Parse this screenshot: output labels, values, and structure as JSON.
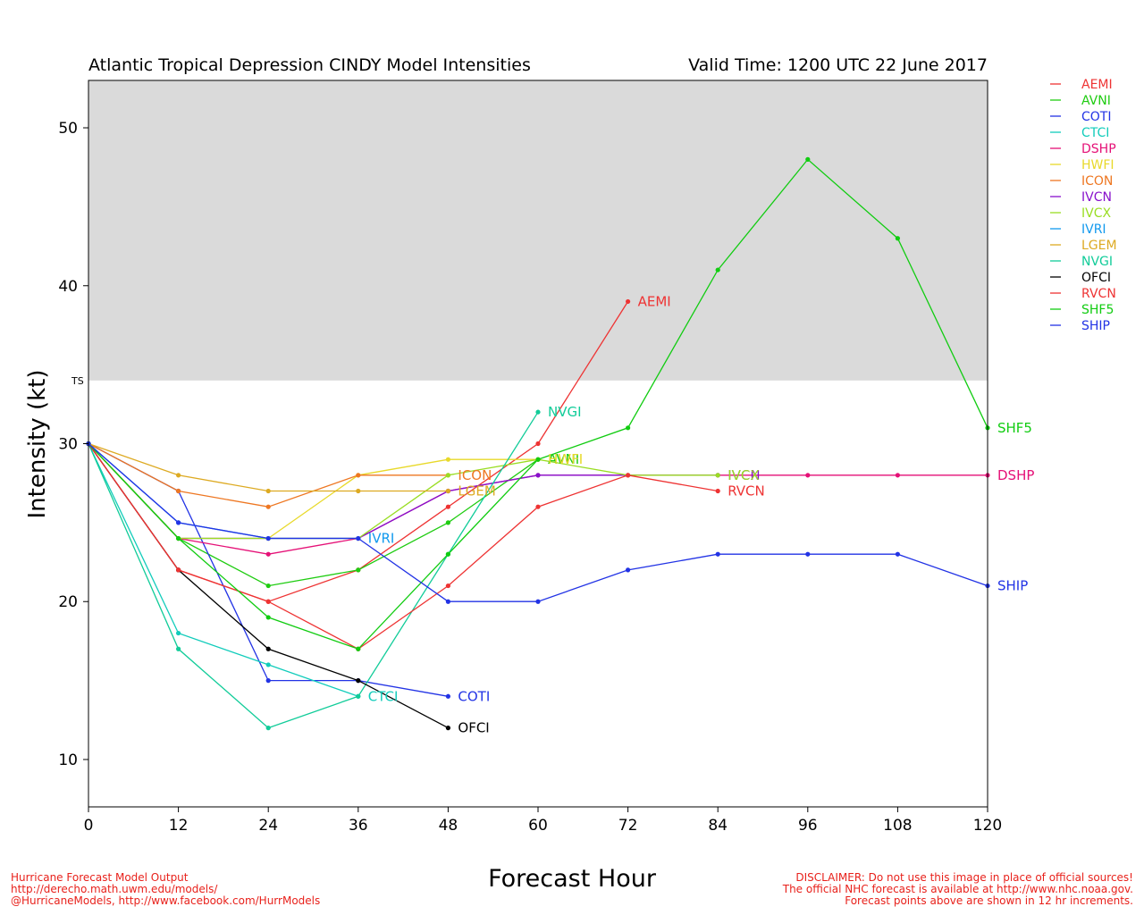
{
  "chart_data": {
    "type": "line",
    "title": "Atlantic Tropical Depression CINDY Model Intensities",
    "valid_time": "Valid Time: 1200 UTC 22 June 2017",
    "xlabel": "Forecast Hour",
    "ylabel": "Intensity (kt)",
    "xlim": [
      0,
      120
    ],
    "ylim": [
      7,
      53
    ],
    "xticks": [
      "0",
      "12",
      "24",
      "36",
      "48",
      "60",
      "72",
      "84",
      "96",
      "108",
      "120"
    ],
    "xtick_values": [
      0,
      12,
      24,
      36,
      48,
      60,
      72,
      84,
      96,
      108,
      120
    ],
    "yticks": [
      "10",
      "20",
      "30",
      "40",
      "50"
    ],
    "ytick_values": [
      10,
      20,
      30,
      40,
      50
    ],
    "threshold": {
      "label": "TS",
      "value": 34,
      "shaded_above": true,
      "shade_color": "#dadada"
    },
    "legend_position": "outside-right",
    "series": [
      {
        "name": "AEMI",
        "color": "#ee3333",
        "x": [
          0,
          12,
          24,
          36,
          48,
          60,
          72
        ],
        "y": [
          30,
          22,
          20,
          22,
          26,
          30,
          39
        ],
        "label": "AEMI"
      },
      {
        "name": "AVNI",
        "color": "#1fcc11",
        "x": [
          0,
          12,
          24,
          36,
          48,
          60
        ],
        "y": [
          30,
          24,
          21,
          22,
          25,
          29
        ],
        "label": "AVNI"
      },
      {
        "name": "COTI",
        "color": "#2233e5",
        "x": [
          0,
          12,
          24,
          36,
          48
        ],
        "y": [
          30,
          27,
          15,
          15,
          14
        ],
        "label": "COTI"
      },
      {
        "name": "CTCI",
        "color": "#11ccbb",
        "x": [
          0,
          12,
          24,
          36
        ],
        "y": [
          30,
          18,
          16,
          14
        ],
        "label": "CTCI"
      },
      {
        "name": "DSHP",
        "color": "#e51177",
        "x": [
          0,
          12,
          24,
          36,
          48,
          60,
          72,
          84,
          96,
          108,
          120
        ],
        "y": [
          30,
          24,
          23,
          24,
          27,
          28,
          28,
          28,
          28,
          28,
          28
        ],
        "label": "DSHP"
      },
      {
        "name": "HWFI",
        "color": "#e8d92a",
        "x": [
          0,
          12,
          24,
          36,
          48,
          60
        ],
        "y": [
          30,
          24,
          24,
          28,
          29,
          29
        ],
        "label": "HWFI"
      },
      {
        "name": "ICON",
        "color": "#ee7722",
        "x": [
          0,
          12,
          24,
          36,
          48
        ],
        "y": [
          30,
          27,
          26,
          28,
          28
        ],
        "label": "ICON"
      },
      {
        "name": "IVCN",
        "color": "#8811cc",
        "x": [
          0,
          12,
          24,
          36,
          48,
          60,
          72,
          84
        ],
        "y": [
          30,
          24,
          24,
          24,
          27,
          28,
          28,
          28
        ],
        "label": "IVCN"
      },
      {
        "name": "IVCX",
        "color": "#99dd22",
        "x": [
          0,
          12,
          24,
          36,
          48,
          60,
          72,
          84
        ],
        "y": [
          30,
          24,
          24,
          24,
          28,
          29,
          28,
          28
        ],
        "label": "IVCX"
      },
      {
        "name": "IVRI",
        "color": "#1199ee",
        "x": [
          0,
          12,
          24,
          36
        ],
        "y": [
          30,
          25,
          24,
          24
        ],
        "label": "IVRI"
      },
      {
        "name": "LGEM",
        "color": "#ddaa22",
        "x": [
          0,
          12,
          24,
          36,
          48
        ],
        "y": [
          30,
          28,
          27,
          27,
          27
        ],
        "label": "LGEM"
      },
      {
        "name": "NVGI",
        "color": "#11cc99",
        "x": [
          0,
          12,
          24,
          36,
          48,
          60
        ],
        "y": [
          30,
          17,
          12,
          14,
          23,
          32
        ],
        "label": "NVGI"
      },
      {
        "name": "OFCI",
        "color": "#000000",
        "x": [
          0,
          12,
          24,
          36,
          48
        ],
        "y": [
          30,
          22,
          17,
          15,
          12
        ],
        "label": "OFCI"
      },
      {
        "name": "RVCN",
        "color": "#ee3333",
        "x": [
          0,
          12,
          24,
          36,
          48,
          60,
          72,
          84
        ],
        "y": [
          30,
          22,
          20,
          17,
          21,
          26,
          28,
          27
        ],
        "label": "RVCN"
      },
      {
        "name": "SHF5",
        "color": "#11cc11",
        "x": [
          0,
          12,
          24,
          36,
          48,
          60,
          72,
          84,
          96,
          108,
          120
        ],
        "y": [
          30,
          24,
          19,
          17,
          23,
          29,
          31,
          41,
          48,
          43,
          31
        ],
        "label": "SHF5"
      },
      {
        "name": "SHIP",
        "color": "#2233e5",
        "x": [
          0,
          12,
          24,
          36,
          48,
          60,
          72,
          84,
          96,
          108,
          120
        ],
        "y": [
          30,
          25,
          24,
          24,
          20,
          20,
          22,
          23,
          23,
          23,
          21
        ],
        "label": "SHIP"
      }
    ]
  },
  "footer": {
    "left": [
      "Hurricane Forecast Model Output",
      "http://derecho.math.uwm.edu/models/",
      "@HurricaneModels, http://www.facebook.com/HurrModels"
    ],
    "right": [
      "DISCLAIMER: Do not use this image in place of official sources!",
      "The official NHC forecast is available at http://www.nhc.noaa.gov.",
      "Forecast points above are shown in 12 hr increments."
    ]
  }
}
